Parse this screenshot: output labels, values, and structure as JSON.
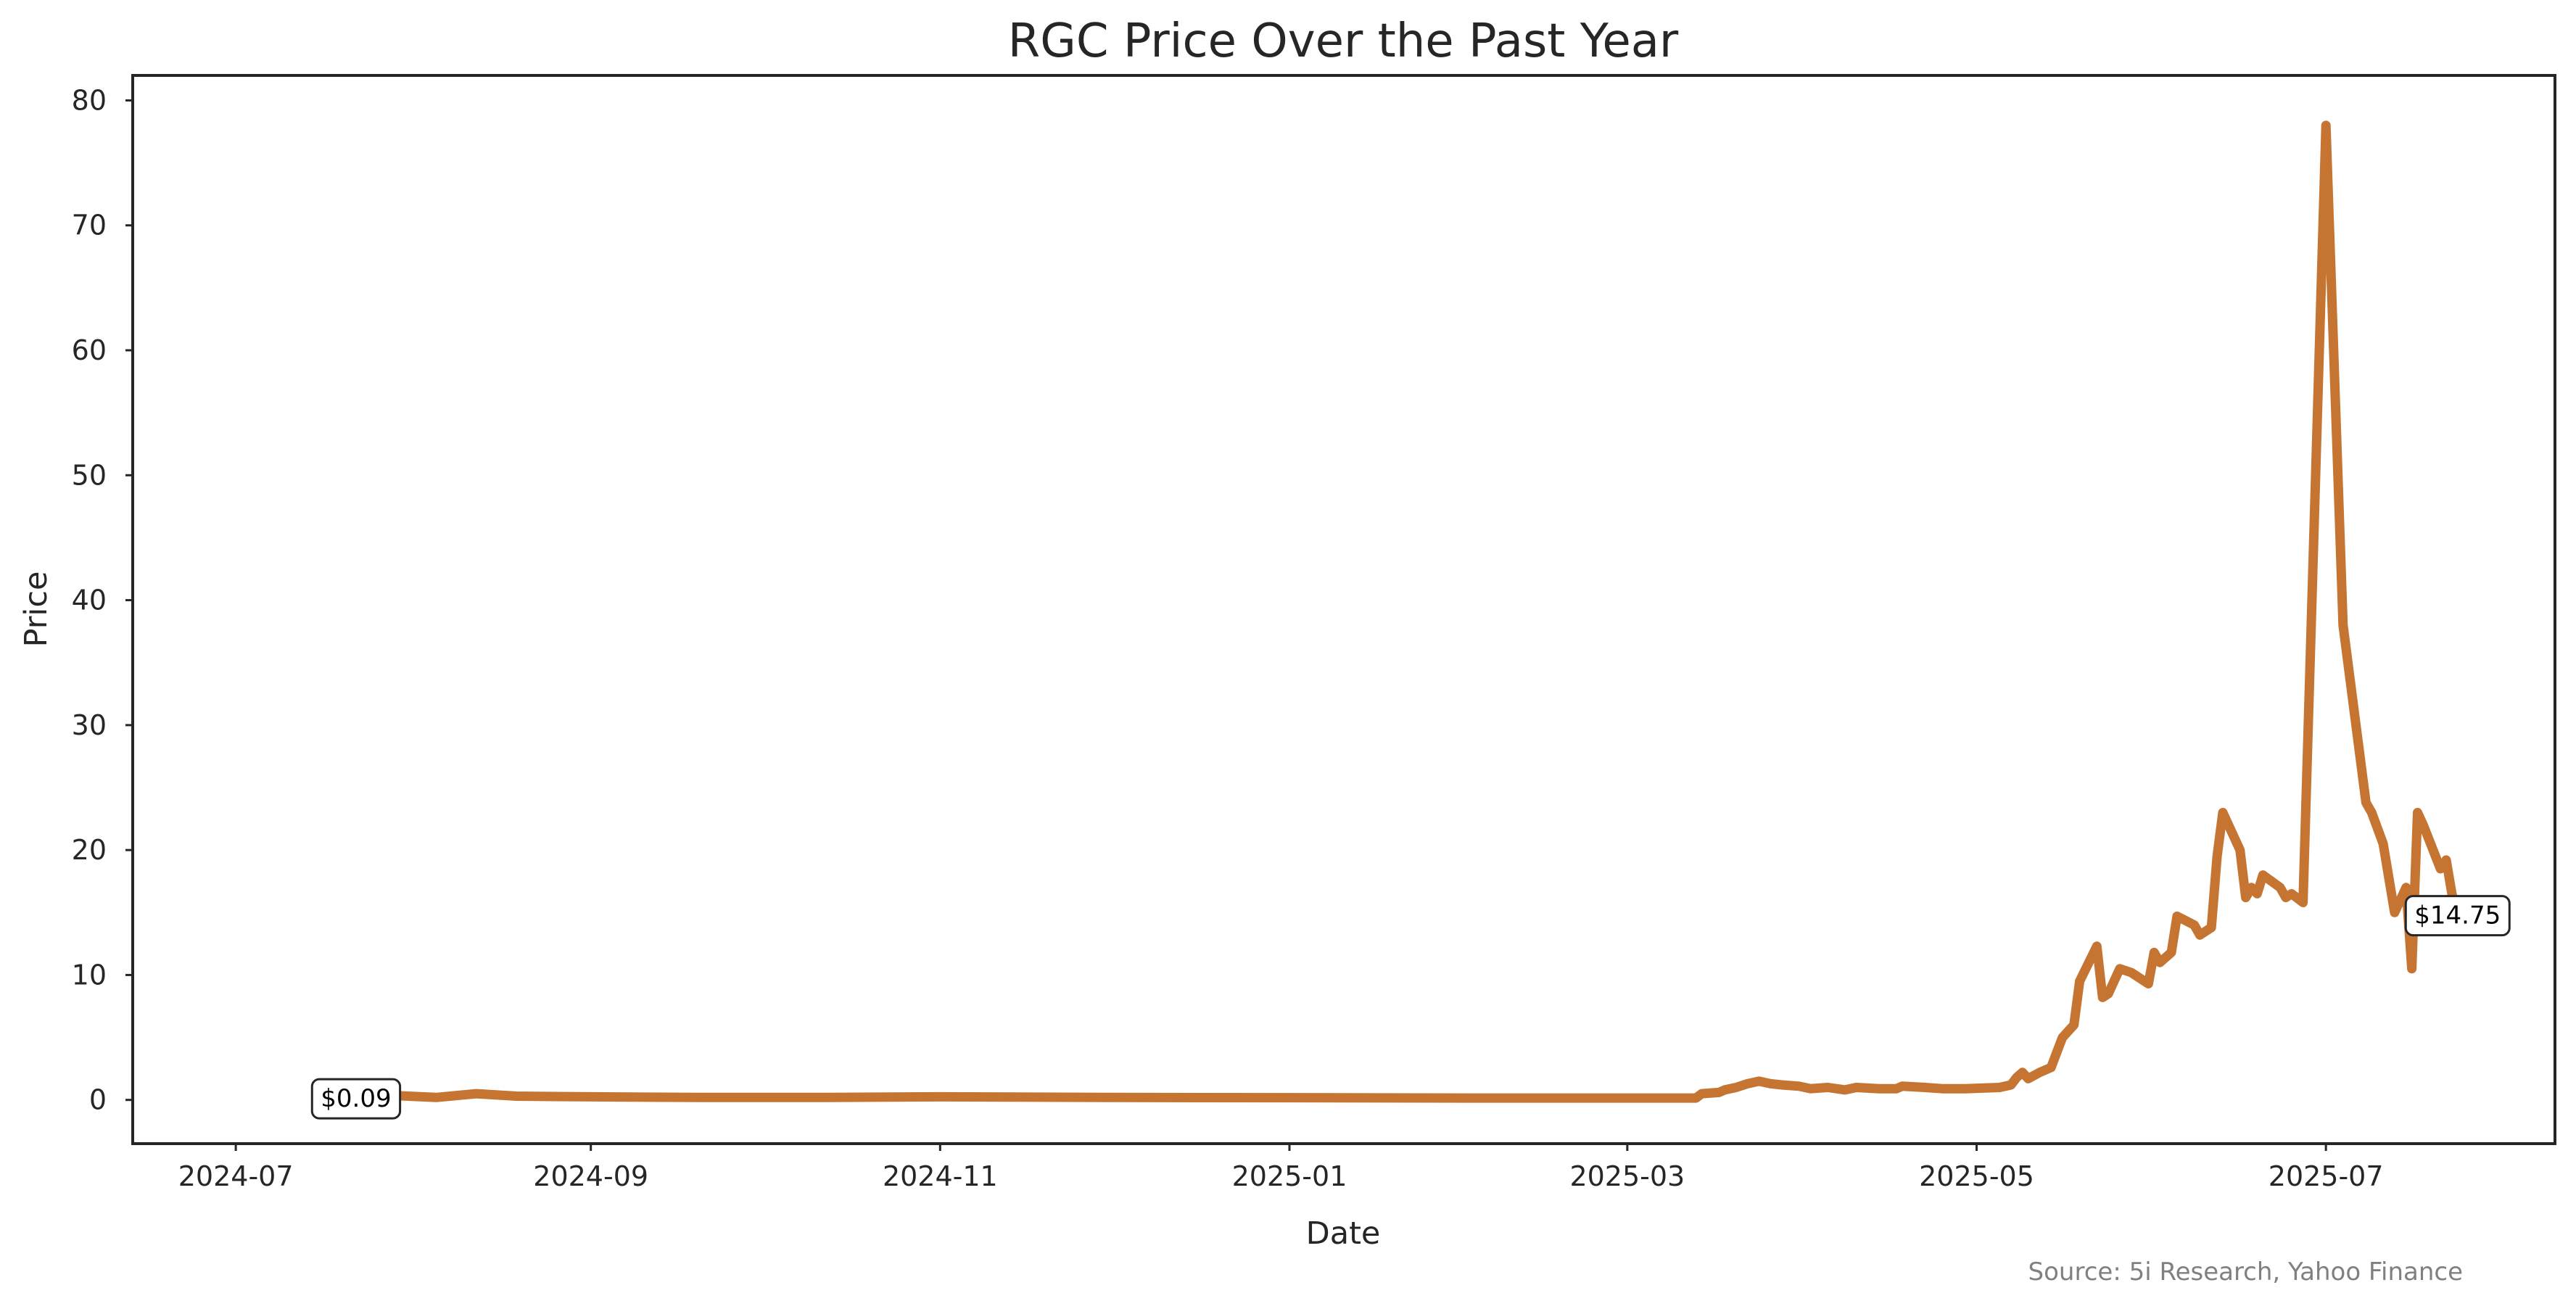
{
  "chart_data": {
    "type": "line",
    "title": "RGC Price Over the Past Year",
    "xlabel": "Date",
    "ylabel": "Price",
    "source_note": "Source: 5i Research, Yahoo Finance",
    "line_color": "#c57531",
    "grid": false,
    "legend": "none",
    "xlim": [
      "2024-06-13",
      "2025-08-10"
    ],
    "ylim": [
      -3.5,
      82
    ],
    "x_ticks": [
      "2024-07",
      "2024-09",
      "2024-11",
      "2025-01",
      "2025-03",
      "2025-05",
      "2025-07"
    ],
    "x_tick_dates": [
      "2024-07-01",
      "2024-09-01",
      "2024-11-01",
      "2025-01-01",
      "2025-03-01",
      "2025-05-01",
      "2025-07-01"
    ],
    "y_ticks": [
      0,
      10,
      20,
      30,
      40,
      50,
      60,
      70,
      80
    ],
    "series": [
      {
        "points": [
          [
            "2024-07-22",
            0.09
          ],
          [
            "2024-07-29",
            0.35
          ],
          [
            "2024-08-05",
            0.2
          ],
          [
            "2024-08-12",
            0.5
          ],
          [
            "2024-08-19",
            0.3
          ],
          [
            "2024-09-01",
            0.25
          ],
          [
            "2024-09-20",
            0.2
          ],
          [
            "2024-10-10",
            0.2
          ],
          [
            "2024-11-01",
            0.25
          ],
          [
            "2024-12-01",
            0.2
          ],
          [
            "2025-01-01",
            0.18
          ],
          [
            "2025-02-01",
            0.15
          ],
          [
            "2025-03-01",
            0.15
          ],
          [
            "2025-03-13",
            0.15
          ],
          [
            "2025-03-14",
            0.5
          ],
          [
            "2025-03-17",
            0.6
          ],
          [
            "2025-03-18",
            0.8
          ],
          [
            "2025-03-20",
            1.0
          ],
          [
            "2025-03-22",
            1.3
          ],
          [
            "2025-03-24",
            1.5
          ],
          [
            "2025-03-26",
            1.3
          ],
          [
            "2025-03-28",
            1.2
          ],
          [
            "2025-03-31",
            1.1
          ],
          [
            "2025-04-02",
            0.9
          ],
          [
            "2025-04-05",
            1.0
          ],
          [
            "2025-04-08",
            0.8
          ],
          [
            "2025-04-10",
            1.0
          ],
          [
            "2025-04-14",
            0.9
          ],
          [
            "2025-04-17",
            0.9
          ],
          [
            "2025-04-18",
            1.1
          ],
          [
            "2025-04-22",
            1.0
          ],
          [
            "2025-04-25",
            0.9
          ],
          [
            "2025-04-29",
            0.9
          ],
          [
            "2025-05-05",
            1.0
          ],
          [
            "2025-05-07",
            1.2
          ],
          [
            "2025-05-08",
            1.8
          ],
          [
            "2025-05-09",
            2.2
          ],
          [
            "2025-05-10",
            1.7
          ],
          [
            "2025-05-12",
            2.2
          ],
          [
            "2025-05-14",
            2.6
          ],
          [
            "2025-05-15",
            3.8
          ],
          [
            "2025-05-16",
            5.0
          ],
          [
            "2025-05-18",
            6.0
          ],
          [
            "2025-05-19",
            9.5
          ],
          [
            "2025-05-22",
            12.3
          ],
          [
            "2025-05-23",
            8.2
          ],
          [
            "2025-05-24",
            8.5
          ],
          [
            "2025-05-26",
            10.5
          ],
          [
            "2025-05-28",
            10.2
          ],
          [
            "2025-05-31",
            9.3
          ],
          [
            "2025-06-01",
            11.8
          ],
          [
            "2025-06-02",
            11.0
          ],
          [
            "2025-06-04",
            11.8
          ],
          [
            "2025-06-05",
            14.7
          ],
          [
            "2025-06-08",
            14.0
          ],
          [
            "2025-06-09",
            13.2
          ],
          [
            "2025-06-11",
            13.8
          ],
          [
            "2025-06-12",
            19.5
          ],
          [
            "2025-06-13",
            23.0
          ],
          [
            "2025-06-16",
            20.0
          ],
          [
            "2025-06-17",
            16.2
          ],
          [
            "2025-06-18",
            17.0
          ],
          [
            "2025-06-19",
            16.5
          ],
          [
            "2025-06-20",
            18.0
          ],
          [
            "2025-06-23",
            17.0
          ],
          [
            "2025-06-24",
            16.2
          ],
          [
            "2025-06-25",
            16.5
          ],
          [
            "2025-06-27",
            15.8
          ],
          [
            "2025-07-01",
            78.0
          ],
          [
            "2025-07-04",
            38.0
          ],
          [
            "2025-07-08",
            23.8
          ],
          [
            "2025-07-09",
            23.0
          ],
          [
            "2025-07-11",
            20.5
          ],
          [
            "2025-07-13",
            15.0
          ],
          [
            "2025-07-15",
            17.0
          ],
          [
            "2025-07-16",
            10.5
          ],
          [
            "2025-07-17",
            23.0
          ],
          [
            "2025-07-18",
            22.0
          ],
          [
            "2025-07-21",
            18.5
          ],
          [
            "2025-07-22",
            19.2
          ],
          [
            "2025-07-23",
            16.5
          ],
          [
            "2025-07-24",
            14.75
          ]
        ]
      }
    ],
    "annotations": [
      {
        "text": "$0.09",
        "date": "2024-07-22",
        "value": 0.09
      },
      {
        "text": "$14.75",
        "date": "2025-07-24",
        "value": 14.75
      }
    ]
  }
}
